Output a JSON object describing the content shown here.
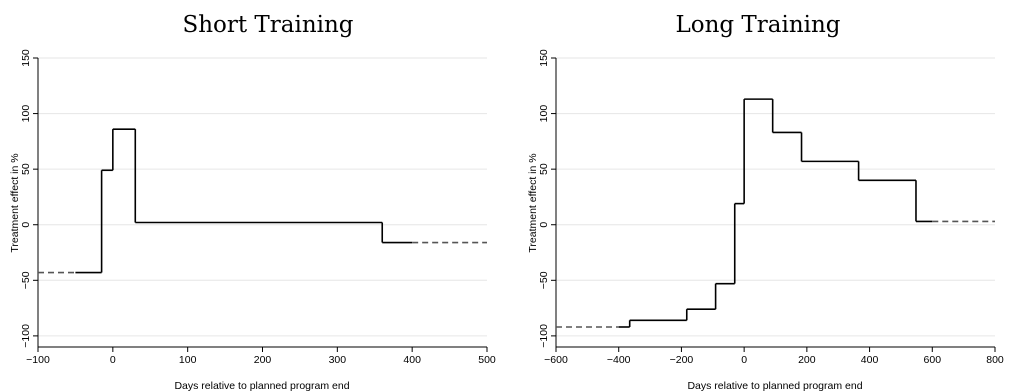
{
  "chart_data": [
    {
      "type": "line",
      "step": true,
      "title": "Short Training",
      "xlabel": "Days relative to planned program end",
      "ylabel": "Treatment effect in %",
      "xlim": [
        -100,
        500
      ],
      "ylim": [
        -110,
        150
      ],
      "xticks": [
        -100,
        0,
        100,
        200,
        300,
        400,
        500
      ],
      "yticks": [
        -100,
        -50,
        0,
        50,
        100,
        150
      ],
      "grid": true,
      "segments": [
        {
          "x0": -100,
          "x1": -50,
          "y": -43,
          "style": "dashed"
        },
        {
          "x0": -50,
          "x1": -15,
          "y": -43,
          "style": "solid"
        },
        {
          "x0": -15,
          "x1": 0,
          "y": 49,
          "style": "solid"
        },
        {
          "x0": 0,
          "x1": 30,
          "y": 86,
          "style": "solid"
        },
        {
          "x0": 30,
          "x1": 360,
          "y": 2,
          "style": "solid"
        },
        {
          "x0": 360,
          "x1": 400,
          "y": -16,
          "style": "solid"
        },
        {
          "x0": 400,
          "x1": 500,
          "y": -16,
          "style": "dashed"
        }
      ]
    },
    {
      "type": "line",
      "step": true,
      "title": "Long Training",
      "xlabel": "Days relative to planned program end",
      "ylabel": "Treatment effect in %",
      "xlim": [
        -600,
        800
      ],
      "ylim": [
        -110,
        150
      ],
      "xticks": [
        -600,
        -400,
        -200,
        0,
        200,
        400,
        600,
        800
      ],
      "yticks": [
        -100,
        -50,
        0,
        50,
        100,
        150
      ],
      "grid": true,
      "segments": [
        {
          "x0": -600,
          "x1": -400,
          "y": -92,
          "style": "dashed"
        },
        {
          "x0": -400,
          "x1": -365,
          "y": -92,
          "style": "solid"
        },
        {
          "x0": -365,
          "x1": -183,
          "y": -86,
          "style": "solid"
        },
        {
          "x0": -183,
          "x1": -91,
          "y": -76,
          "style": "solid"
        },
        {
          "x0": -91,
          "x1": -30,
          "y": -53,
          "style": "solid"
        },
        {
          "x0": -30,
          "x1": 0,
          "y": 19,
          "style": "solid"
        },
        {
          "x0": 0,
          "x1": 91,
          "y": 113,
          "style": "solid"
        },
        {
          "x0": 91,
          "x1": 183,
          "y": 83,
          "style": "solid"
        },
        {
          "x0": 183,
          "x1": 365,
          "y": 57,
          "style": "solid"
        },
        {
          "x0": 365,
          "x1": 548,
          "y": 40,
          "style": "solid"
        },
        {
          "x0": 548,
          "x1": 600,
          "y": 3,
          "style": "solid"
        },
        {
          "x0": 600,
          "x1": 800,
          "y": 3,
          "style": "dashed"
        }
      ]
    }
  ]
}
